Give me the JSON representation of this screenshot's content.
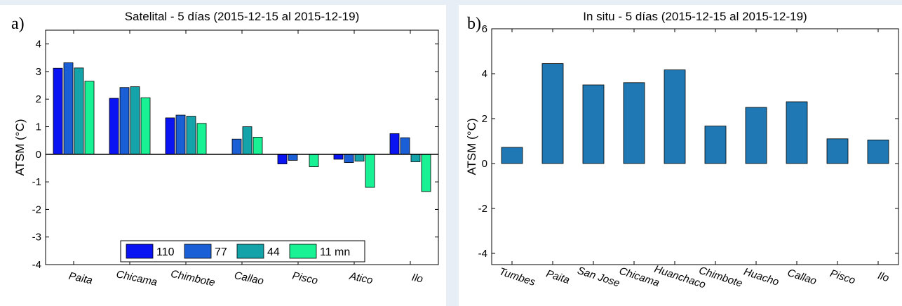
{
  "chart_data": [
    {
      "panel_label": "a)",
      "type": "bar",
      "title": "Satelital - 5 días (2015-12-15  al  2015-12-19)",
      "xlabel": "",
      "ylabel": "ATSM  (°C)",
      "ylim": [
        -4,
        4.5
      ],
      "yticks": [
        -4,
        -3,
        -2,
        -1,
        0,
        1,
        2,
        3,
        4
      ],
      "categories": [
        "Paita",
        "Chicama",
        "Chimbote",
        "Callao",
        "Pisco",
        "Atico",
        "Ilo"
      ],
      "series": [
        {
          "name": "110",
          "color": "#0a14f2",
          "values": [
            3.12,
            2.03,
            1.32,
            null,
            -0.35,
            -0.18,
            0.75
          ]
        },
        {
          "name": "77",
          "color": "#1a5fd6",
          "values": [
            3.32,
            2.42,
            1.42,
            0.55,
            -0.22,
            -0.3,
            0.6
          ]
        },
        {
          "name": "44",
          "color": "#14a3a8",
          "values": [
            3.13,
            2.45,
            1.38,
            1.0,
            null,
            -0.25,
            -0.27
          ]
        },
        {
          "name": "11 mn",
          "color": "#19f294",
          "values": [
            2.65,
            2.05,
            1.12,
            0.62,
            -0.45,
            -1.2,
            -1.35
          ]
        }
      ],
      "legend": "bottom-center",
      "grid": false
    },
    {
      "panel_label": "b)",
      "type": "bar",
      "title": "In situ - 5 días (2015-12-15  al  2015-12-19)",
      "xlabel": "",
      "ylabel": "ATSM  (°C)",
      "ylim": [
        -4.5,
        6
      ],
      "yticks": [
        -4,
        -2,
        0,
        2,
        4,
        6
      ],
      "categories": [
        "Tumbes",
        "Paita",
        "San Jose",
        "Chicama",
        "Huanchaco",
        "Chimbote",
        "Huacho",
        "Callao",
        "Pisco",
        "Ilo"
      ],
      "series": [
        {
          "color": "#1f77b4",
          "values": [
            0.72,
            4.45,
            3.5,
            3.6,
            4.17,
            1.67,
            2.5,
            2.75,
            1.1,
            1.05
          ]
        }
      ],
      "grid": false
    }
  ]
}
